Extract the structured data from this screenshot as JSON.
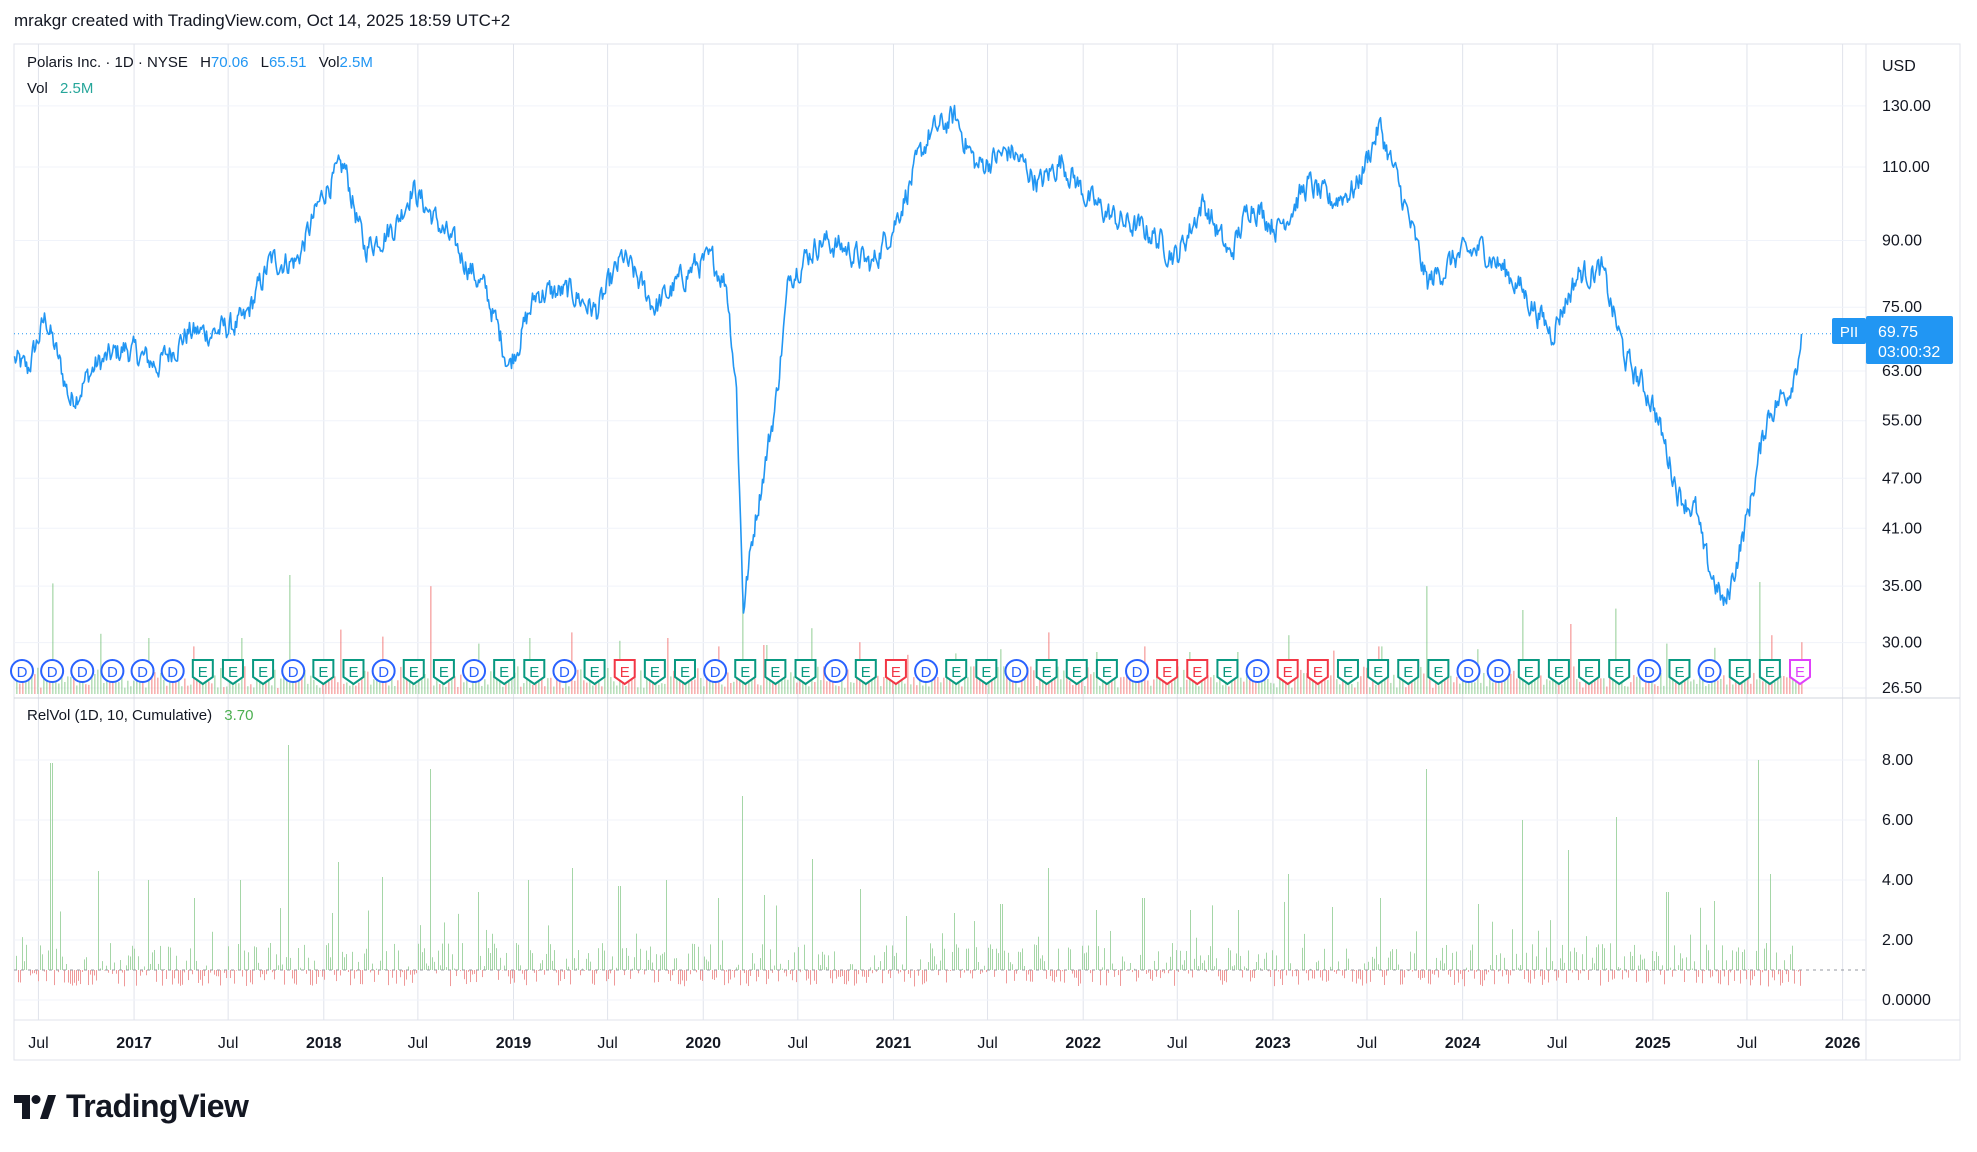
{
  "header": "mrakgr created with TradingView.com, Oct 14, 2025 18:59 UTC+2",
  "legend": {
    "name": "Polaris Inc. · 1D · NYSE",
    "h_label": "H",
    "h_value": "70.06",
    "l_label": "L",
    "l_value": "65.51",
    "vol_label": "Vol",
    "vol_value": "2.5M",
    "vol_line_label": "Vol",
    "vol_line_value": "2.5M"
  },
  "relvol_legend": {
    "label": "RelVol (1D, 10, Cumulative)",
    "value": "3.70"
  },
  "currency": "USD",
  "ticker": "PII",
  "last_price": "69.75",
  "countdown": "03:00:32",
  "logo_text": "TradingView",
  "colors": {
    "price_line": "#2196f3",
    "volume_up": "#66bb6a",
    "volume_down": "#ef5350",
    "relvol_up": "#a5d6a7",
    "relvol_down": "#ef9a9a",
    "dividend": "#2962ff",
    "earnings_beat": "#089981",
    "earnings_miss": "#f23645",
    "earnings_upcoming": "#e040fb",
    "grid": "#e0e3eb",
    "axis_text": "#131722"
  },
  "chart_data": [
    {
      "type": "line",
      "title": "Polaris Inc. · 1D · NYSE",
      "ylabel": "USD",
      "y_scale": "log",
      "ylim": [
        26.5,
        138
      ],
      "xlim": [
        "2016-05-15",
        "2026-02-15"
      ],
      "y_ticks": [
        "130.00",
        "110.00",
        "90.00",
        "75.00",
        "63.00",
        "55.00",
        "47.00",
        "41.00",
        "35.00",
        "30.00",
        "26.50"
      ],
      "x_ticks": [
        "Jul",
        "2017",
        "Jul",
        "2018",
        "Jul",
        "2019",
        "Jul",
        "2020",
        "Jul",
        "2021",
        "Jul",
        "2022",
        "Jul",
        "2023",
        "Jul",
        "2024",
        "Jul",
        "2025",
        "Jul",
        "2026"
      ],
      "x_tick_dates": [
        "2016-07-01",
        "2017-01-01",
        "2017-07-01",
        "2018-01-01",
        "2018-07-01",
        "2019-01-01",
        "2019-07-01",
        "2020-01-01",
        "2020-07-01",
        "2021-01-01",
        "2021-07-01",
        "2022-01-01",
        "2022-07-01",
        "2023-01-01",
        "2023-07-01",
        "2024-01-01",
        "2024-07-01",
        "2025-01-01",
        "2025-07-01",
        "2026-01-01"
      ],
      "series": [
        {
          "name": "Polaris Inc.",
          "x": [
            "2016-05-16",
            "2016-06-10",
            "2016-07-15",
            "2016-09-01",
            "2016-10-20",
            "2016-12-15",
            "2017-02-15",
            "2017-04-15",
            "2017-06-01",
            "2017-08-01",
            "2017-09-20",
            "2017-11-10",
            "2018-01-05",
            "2018-02-10",
            "2018-03-20",
            "2018-05-20",
            "2018-06-20",
            "2018-07-30",
            "2018-09-25",
            "2018-11-10",
            "2018-12-24",
            "2019-02-15",
            "2019-04-25",
            "2019-06-10",
            "2019-07-30",
            "2019-10-01",
            "2019-12-15",
            "2020-01-20",
            "2020-02-15",
            "2020-03-05",
            "2020-03-18",
            "2020-04-10",
            "2020-05-20",
            "2020-06-15",
            "2020-08-15",
            "2020-10-01",
            "2020-11-20",
            "2021-01-05",
            "2021-03-10",
            "2021-04-30",
            "2021-06-10",
            "2021-08-15",
            "2021-10-10",
            "2021-11-20",
            "2022-01-15",
            "2022-03-10",
            "2022-05-10",
            "2022-06-30",
            "2022-08-20",
            "2022-10-10",
            "2022-11-20",
            "2023-01-10",
            "2023-03-10",
            "2023-04-20",
            "2023-06-10",
            "2023-07-25",
            "2023-09-10",
            "2023-10-25",
            "2023-12-20",
            "2024-02-10",
            "2024-04-15",
            "2024-06-20",
            "2024-08-10",
            "2024-09-25",
            "2024-11-10",
            "2024-12-31",
            "2025-02-20",
            "2025-03-25",
            "2025-04-10",
            "2025-05-20",
            "2025-07-01",
            "2025-08-10",
            "2025-09-20",
            "2025-10-06",
            "2025-10-14"
          ],
          "values": [
            65,
            63,
            73,
            58,
            64,
            67,
            64,
            70,
            70,
            72,
            85,
            85,
            104,
            110,
            88,
            94,
            104,
            96,
            86,
            78,
            64,
            78,
            78,
            74,
            86,
            75,
            84,
            85,
            80,
            60,
            33,
            42,
            58,
            82,
            90,
            88,
            84,
            95,
            120,
            126,
            110,
            115,
            105,
            112,
            100,
            95,
            92,
            86,
            100,
            86,
            100,
            93,
            105,
            100,
            104,
            123,
            100,
            80,
            86,
            88,
            80,
            70,
            82,
            83,
            65,
            58,
            45,
            43,
            38,
            33,
            42,
            56,
            60,
            65,
            69.75
          ]
        }
      ]
    },
    {
      "type": "bar",
      "title": "Vol",
      "series": [
        {
          "name": "Vol",
          "values": [
            2.5
          ]
        }
      ]
    },
    {
      "type": "bar",
      "title": "RelVol (1D, 10, Cumulative)",
      "ylim": [
        0,
        9
      ],
      "y_ticks": [
        "8.00",
        "6.00",
        "4.00",
        "2.00",
        "0.0000"
      ],
      "baseline": 1.0,
      "spikes": [
        {
          "x": "2016-07-25",
          "value": 7.9
        },
        {
          "x": "2016-10-25",
          "value": 4.3
        },
        {
          "x": "2017-01-27",
          "value": 4.0
        },
        {
          "x": "2017-04-25",
          "value": 3.4
        },
        {
          "x": "2017-07-25",
          "value": 4.0
        },
        {
          "x": "2017-10-24",
          "value": 8.5
        },
        {
          "x": "2018-01-30",
          "value": 4.6
        },
        {
          "x": "2018-04-24",
          "value": 4.1
        },
        {
          "x": "2018-07-24",
          "value": 7.7
        },
        {
          "x": "2018-10-23",
          "value": 3.6
        },
        {
          "x": "2019-01-29",
          "value": 4.0
        },
        {
          "x": "2019-04-23",
          "value": 4.4
        },
        {
          "x": "2019-07-23",
          "value": 3.8
        },
        {
          "x": "2019-10-22",
          "value": 4.0
        },
        {
          "x": "2020-01-28",
          "value": 3.4
        },
        {
          "x": "2020-03-16",
          "value": 6.8
        },
        {
          "x": "2020-04-28",
          "value": 3.5
        },
        {
          "x": "2020-07-28",
          "value": 4.7
        },
        {
          "x": "2020-10-27",
          "value": 3.7
        },
        {
          "x": "2021-01-26",
          "value": 2.8
        },
        {
          "x": "2021-04-27",
          "value": 2.9
        },
        {
          "x": "2021-07-27",
          "value": 3.2
        },
        {
          "x": "2021-10-26",
          "value": 4.4
        },
        {
          "x": "2022-01-25",
          "value": 3.0
        },
        {
          "x": "2022-04-26",
          "value": 3.4
        },
        {
          "x": "2022-07-26",
          "value": 3.0
        },
        {
          "x": "2022-10-25",
          "value": 3.0
        },
        {
          "x": "2023-01-31",
          "value": 4.2
        },
        {
          "x": "2023-04-25",
          "value": 3.1
        },
        {
          "x": "2023-07-25",
          "value": 3.4
        },
        {
          "x": "2023-10-24",
          "value": 7.7
        },
        {
          "x": "2024-01-30",
          "value": 3.2
        },
        {
          "x": "2024-04-23",
          "value": 6.0
        },
        {
          "x": "2024-07-23",
          "value": 5.0
        },
        {
          "x": "2024-10-22",
          "value": 6.1
        },
        {
          "x": "2025-01-28",
          "value": 3.6
        },
        {
          "x": "2025-04-29",
          "value": 3.3
        },
        {
          "x": "2025-07-22",
          "value": 8.0
        },
        {
          "x": "2025-08-15",
          "value": 4.2
        },
        {
          "x": "2025-10-14",
          "value": 3.7
        }
      ]
    }
  ],
  "events": {
    "markers": [
      "D",
      "D",
      "D",
      "D",
      "D",
      "D",
      "E",
      "E",
      "E",
      "D",
      "E",
      "E",
      "D",
      "E",
      "E",
      "D",
      "E",
      "E",
      "D",
      "E",
      "E",
      "E",
      "E",
      "D",
      "E",
      "E",
      "E",
      "D",
      "E",
      "E",
      "D",
      "E",
      "E",
      "D",
      "E",
      "E",
      "E",
      "D",
      "E",
      "E",
      "E",
      "D",
      "E",
      "E",
      "E",
      "E",
      "E",
      "E",
      "D",
      "D",
      "E",
      "E",
      "E",
      "E",
      "D",
      "E",
      "D",
      "E",
      "E",
      "E"
    ],
    "kinds": [
      "div",
      "div",
      "div",
      "div",
      "div",
      "div",
      "beat",
      "beat",
      "beat",
      "div",
      "beat",
      "beat",
      "div",
      "beat",
      "beat",
      "div",
      "beat",
      "beat",
      "div",
      "beat",
      "miss",
      "beat",
      "beat",
      "div",
      "beat",
      "beat",
      "beat",
      "div",
      "beat",
      "miss",
      "div",
      "beat",
      "beat",
      "div",
      "beat",
      "beat",
      "beat",
      "div",
      "miss",
      "miss",
      "beat",
      "div",
      "miss",
      "miss",
      "beat",
      "beat",
      "beat",
      "beat",
      "div",
      "div",
      "beat",
      "beat",
      "beat",
      "beat",
      "div",
      "beat",
      "div",
      "beat",
      "beat",
      "upcoming"
    ]
  }
}
